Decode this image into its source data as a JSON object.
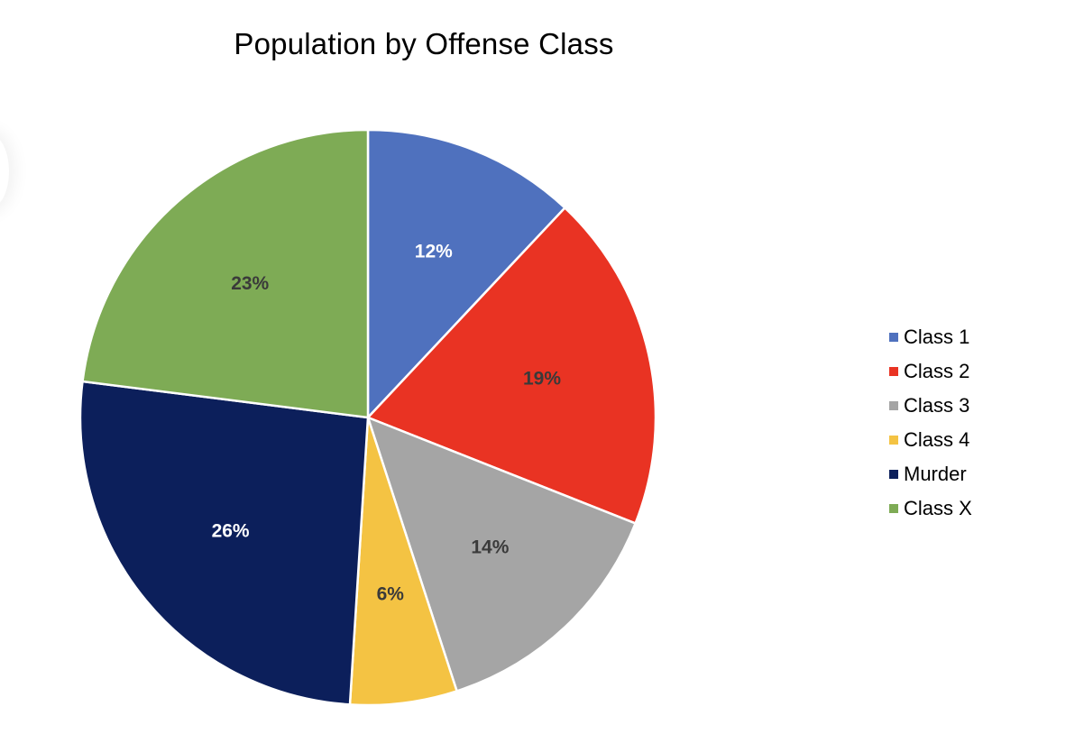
{
  "chart_data": {
    "type": "pie",
    "title": "Population by Offense Class",
    "start_angle_deg": 0,
    "direction": "clockwise",
    "slices": [
      {
        "name": "Class 1",
        "value": 12,
        "label": "12%",
        "color": "#4F71BE",
        "label_color": "#FFFFFF"
      },
      {
        "name": "Class 2",
        "value": 19,
        "label": "19%",
        "color": "#E93323",
        "label_color": "#3A3A3A"
      },
      {
        "name": "Class 3",
        "value": 14,
        "label": "14%",
        "color": "#A5A5A5",
        "label_color": "#3A3A3A"
      },
      {
        "name": "Class 4",
        "value": 6,
        "label": "6%",
        "color": "#F4C343",
        "label_color": "#3A3A3A"
      },
      {
        "name": "Murder",
        "value": 26,
        "label": "26%",
        "color": "#0C1F5B",
        "label_color": "#FFFFFF"
      },
      {
        "name": "Class X",
        "value": 23,
        "label": "23%",
        "color": "#7EAB55",
        "label_color": "#3A3A3A"
      }
    ],
    "legend": {
      "position": "right",
      "entries": [
        "Class 1",
        "Class 2",
        "Class 3",
        "Class 4",
        "Murder",
        "Class X"
      ]
    }
  }
}
